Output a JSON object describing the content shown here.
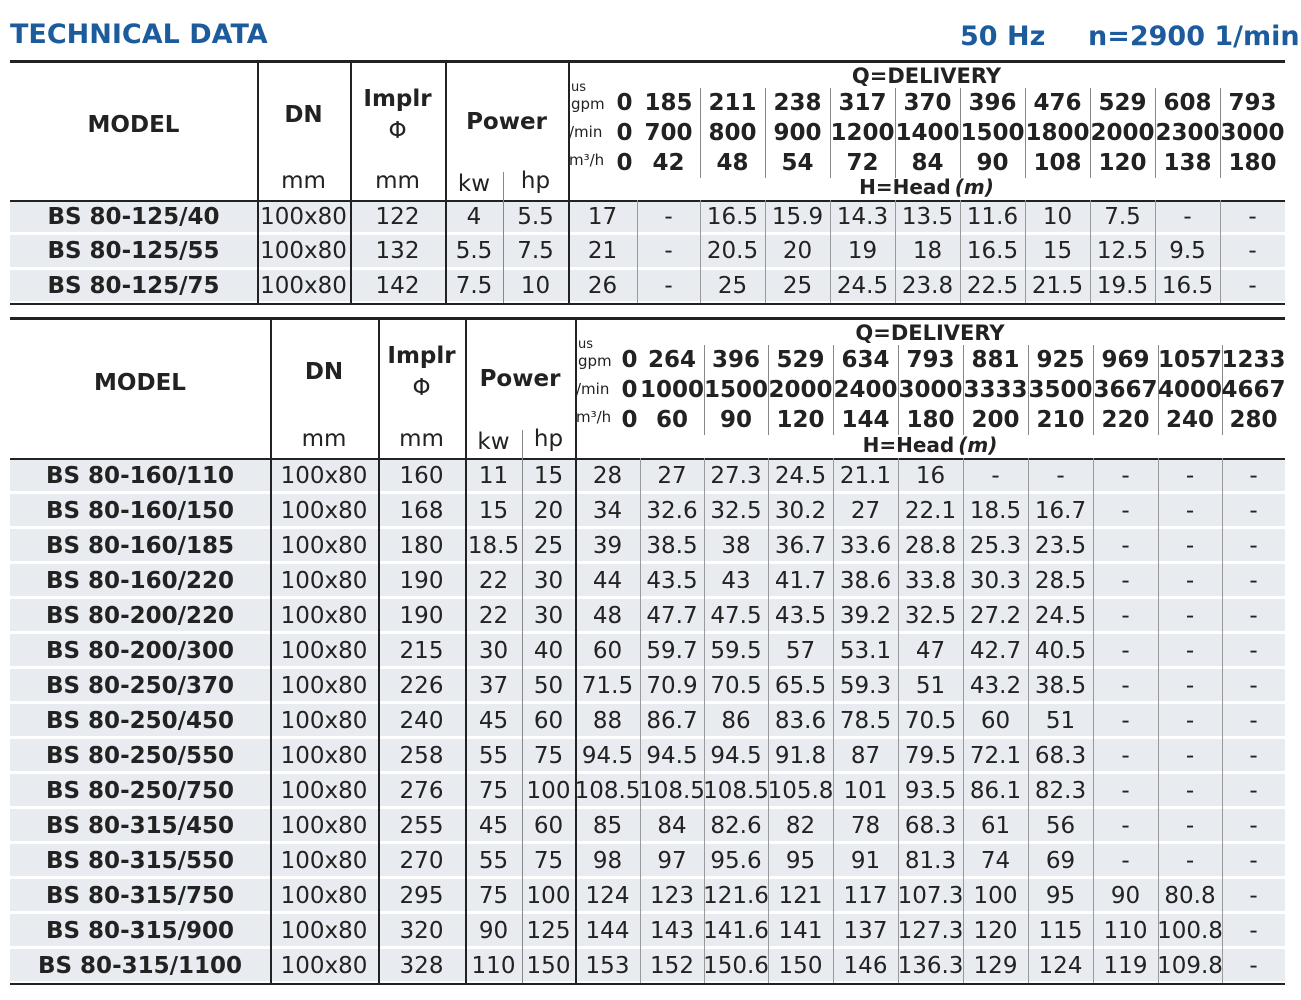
{
  "header": {
    "title": "TECHNICAL DATA",
    "frequency": "50 Hz",
    "speed": "n=2900 1/min"
  },
  "tables": [
    {
      "labels": {
        "model": "MODEL",
        "dn": "DN",
        "dn_unit": "mm",
        "impeller": "Implr",
        "impeller_symbol": "Φ",
        "impeller_unit": "mm",
        "power": "Power",
        "kw": "kw",
        "hp": "hp",
        "delivery": "Q=DELIVERY",
        "gpm_prefix": "us",
        "gpm": "gpm",
        "lmin": "/min",
        "m3h": "m³/h",
        "head": "H=Head",
        "head_unit": "(m)"
      },
      "gpm": [
        0,
        185,
        211,
        238,
        317,
        370,
        396,
        476,
        529,
        608,
        793
      ],
      "lmin": [
        0,
        700,
        800,
        900,
        1200,
        1400,
        1500,
        1800,
        2000,
        2300,
        3000
      ],
      "m3h": [
        0,
        42,
        48,
        54,
        72,
        84,
        90,
        108,
        120,
        138,
        180
      ],
      "rows": [
        [
          "BS 80-125/40",
          "100x80",
          122,
          4,
          5.5,
          17,
          "-",
          16.5,
          15.9,
          14.3,
          13.5,
          11.6,
          10,
          7.5,
          "-",
          "-"
        ],
        [
          "BS 80-125/55",
          "100x80",
          132,
          5.5,
          7.5,
          21,
          "-",
          20.5,
          20,
          19,
          18,
          16.5,
          15,
          12.5,
          9.5,
          "-"
        ],
        [
          "BS 80-125/75",
          "100x80",
          142,
          7.5,
          10,
          26,
          "-",
          25,
          25,
          24.5,
          23.8,
          22.5,
          21.5,
          19.5,
          16.5,
          "-"
        ]
      ]
    },
    {
      "labels": {
        "model": "MODEL",
        "dn": "DN",
        "dn_unit": "mm",
        "impeller": "Implr",
        "impeller_symbol": "Φ",
        "impeller_unit": "mm",
        "power": "Power",
        "kw": "kw",
        "hp": "hp",
        "delivery": "Q=DELIVERY",
        "gpm_prefix": "us",
        "gpm": "gpm",
        "lmin": "/min",
        "m3h": "m³/h",
        "head": "H=Head",
        "head_unit": "(m)"
      },
      "gpm": [
        0,
        264,
        396,
        529,
        634,
        793,
        881,
        925,
        969,
        1057,
        1233
      ],
      "lmin": [
        0,
        1000,
        1500,
        2000,
        2400,
        3000,
        3333,
        3500,
        3667,
        4000,
        4667
      ],
      "m3h": [
        0,
        60,
        90,
        120,
        144,
        180,
        200,
        210,
        220,
        240,
        280
      ],
      "rows": [
        [
          "BS 80-160/110",
          "100x80",
          160,
          11,
          15,
          28,
          27,
          27.3,
          24.5,
          21.1,
          16,
          "-",
          "-",
          "-",
          "-",
          "-"
        ],
        [
          "BS 80-160/150",
          "100x80",
          168,
          15,
          20,
          34,
          32.6,
          32.5,
          30.2,
          27,
          22.1,
          18.5,
          16.7,
          "-",
          "-",
          "-"
        ],
        [
          "BS 80-160/185",
          "100x80",
          180,
          18.5,
          25,
          39,
          38.5,
          38,
          36.7,
          33.6,
          28.8,
          25.3,
          23.5,
          "-",
          "-",
          "-"
        ],
        [
          "BS 80-160/220",
          "100x80",
          190,
          22,
          30,
          44,
          43.5,
          43,
          41.7,
          38.6,
          33.8,
          30.3,
          28.5,
          "-",
          "-",
          "-"
        ],
        [
          "BS 80-200/220",
          "100x80",
          190,
          22,
          30,
          48,
          47.7,
          47.5,
          43.5,
          39.2,
          32.5,
          27.2,
          24.5,
          "-",
          "-",
          "-"
        ],
        [
          "BS 80-200/300",
          "100x80",
          215,
          30,
          40,
          60,
          59.7,
          59.5,
          57,
          53.1,
          47,
          42.7,
          40.5,
          "-",
          "-",
          "-"
        ],
        [
          "BS 80-250/370",
          "100x80",
          226,
          37,
          50,
          71.5,
          70.9,
          70.5,
          65.5,
          59.3,
          51,
          43.2,
          38.5,
          "-",
          "-",
          "-"
        ],
        [
          "BS 80-250/450",
          "100x80",
          240,
          45,
          60,
          88,
          86.7,
          86,
          83.6,
          78.5,
          70.5,
          60,
          51,
          "-",
          "-",
          "-"
        ],
        [
          "BS 80-250/550",
          "100x80",
          258,
          55,
          75,
          94.5,
          94.5,
          94.5,
          91.8,
          87,
          79.5,
          72.1,
          68.3,
          "-",
          "-",
          "-"
        ],
        [
          "BS 80-250/750",
          "100x80",
          276,
          75,
          100,
          108.5,
          108.5,
          108.5,
          105.8,
          101,
          93.5,
          86.1,
          82.3,
          "-",
          "-",
          "-"
        ],
        [
          "BS 80-315/450",
          "100x80",
          255,
          45,
          60,
          85,
          84,
          82.6,
          82,
          78,
          68.3,
          61,
          56,
          "-",
          "-",
          "-"
        ],
        [
          "BS 80-315/550",
          "100x80",
          270,
          55,
          75,
          98,
          97,
          95.6,
          95,
          91,
          81.3,
          74,
          69,
          "-",
          "-",
          "-"
        ],
        [
          "BS 80-315/750",
          "100x80",
          295,
          75,
          100,
          124,
          123,
          121.6,
          121,
          117,
          107.3,
          100,
          95,
          90,
          80.8,
          "-"
        ],
        [
          "BS 80-315/900",
          "100x80",
          320,
          90,
          125,
          144,
          143,
          141.6,
          141,
          137,
          127.3,
          120,
          115,
          110,
          100.8,
          "-"
        ],
        [
          "BS 80-315/1100",
          "100x80",
          328,
          110,
          150,
          153,
          152,
          150.6,
          150,
          146,
          136.3,
          129,
          124,
          119,
          109.8,
          "-"
        ]
      ]
    }
  ]
}
